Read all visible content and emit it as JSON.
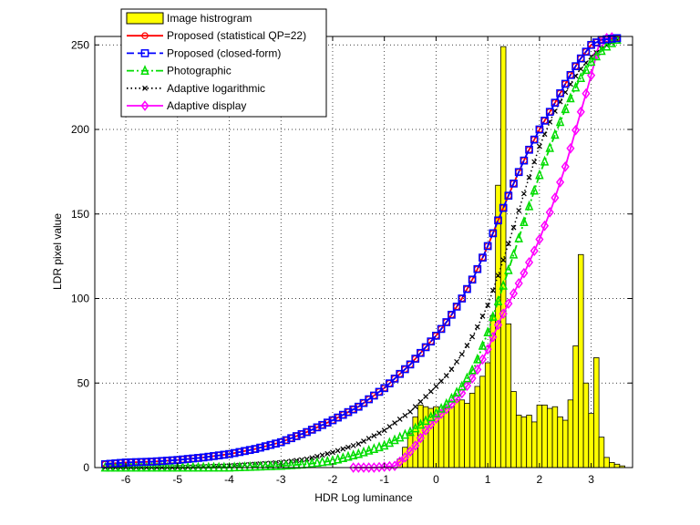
{
  "chart_data": {
    "type": "line",
    "title": "",
    "xlabel": "HDR Log luminance",
    "ylabel": "LDR pixel value",
    "xlim": [
      -6.6,
      3.8
    ],
    "ylim": [
      0,
      255
    ],
    "xticks": [
      -6,
      -5,
      -4,
      -3,
      -2,
      -1,
      0,
      1,
      2,
      3
    ],
    "yticks": [
      0,
      50,
      100,
      150,
      200,
      250
    ],
    "xtick_labels": [
      "-6",
      "-5",
      "-4",
      "-3",
      "-2",
      "-1",
      "0",
      "1",
      "2",
      "3"
    ],
    "ytick_labels": [
      "0",
      "50",
      "100",
      "150",
      "200",
      "250"
    ],
    "grid": "dotted",
    "legend_position": "top-left",
    "legend": [
      "Image histrogram",
      "Proposed (statistical QP=22)",
      "Proposed (closed-form)",
      "Photographic",
      "Adaptive logarithmic",
      "Adaptive display"
    ],
    "histogram": {
      "name": "Image histrogram",
      "color": "#ffff00",
      "bin_width": 0.1,
      "points": [
        [
          -0.7,
          5
        ],
        [
          -0.6,
          12
        ],
        [
          -0.5,
          20
        ],
        [
          -0.4,
          30
        ],
        [
          -0.3,
          37
        ],
        [
          -0.2,
          36
        ],
        [
          -0.1,
          35
        ],
        [
          0.0,
          36
        ],
        [
          0.1,
          34
        ],
        [
          0.2,
          35
        ],
        [
          0.3,
          36
        ],
        [
          0.4,
          40
        ],
        [
          0.5,
          40
        ],
        [
          0.6,
          38
        ],
        [
          0.7,
          44
        ],
        [
          0.8,
          48
        ],
        [
          0.9,
          54
        ],
        [
          1.0,
          62
        ],
        [
          1.1,
          90
        ],
        [
          1.2,
          167
        ],
        [
          1.3,
          249
        ],
        [
          1.4,
          85
        ],
        [
          1.5,
          45
        ],
        [
          1.6,
          31
        ],
        [
          1.7,
          30
        ],
        [
          1.8,
          31
        ],
        [
          1.9,
          27
        ],
        [
          2.0,
          37
        ],
        [
          2.1,
          37
        ],
        [
          2.2,
          35
        ],
        [
          2.3,
          36
        ],
        [
          2.4,
          30
        ],
        [
          2.5,
          28
        ],
        [
          2.6,
          40
        ],
        [
          2.7,
          72
        ],
        [
          2.8,
          126
        ],
        [
          2.9,
          50
        ],
        [
          3.0,
          32
        ],
        [
          3.1,
          65
        ],
        [
          3.2,
          18
        ],
        [
          3.3,
          6
        ],
        [
          3.4,
          3
        ],
        [
          3.5,
          2
        ],
        [
          3.6,
          1
        ]
      ]
    },
    "series": [
      {
        "name": "Proposed (statistical QP=22)",
        "color": "#ff0000",
        "marker": "circle",
        "linestyle": "solid",
        "points": [
          [
            -6.4,
            2
          ],
          [
            -6.0,
            3
          ],
          [
            -5.5,
            3.5
          ],
          [
            -5.0,
            4.5
          ],
          [
            -4.5,
            6
          ],
          [
            -4.0,
            8
          ],
          [
            -3.5,
            11
          ],
          [
            -3.0,
            15
          ],
          [
            -2.5,
            21
          ],
          [
            -2.0,
            28
          ],
          [
            -1.5,
            36
          ],
          [
            -1.0,
            47
          ],
          [
            -0.5,
            61
          ],
          [
            0.0,
            78
          ],
          [
            0.25,
            88
          ],
          [
            0.5,
            100
          ],
          [
            0.75,
            114
          ],
          [
            1.0,
            131
          ],
          [
            1.25,
            150
          ],
          [
            1.5,
            168
          ],
          [
            1.75,
            185
          ],
          [
            2.0,
            200
          ],
          [
            2.25,
            213
          ],
          [
            2.5,
            227
          ],
          [
            2.75,
            240
          ],
          [
            3.0,
            250
          ],
          [
            3.2,
            253
          ],
          [
            3.5,
            254
          ]
        ]
      },
      {
        "name": "Proposed (closed-form)",
        "color": "#0000ff",
        "marker": "square",
        "linestyle": "dashed",
        "points": [
          [
            -6.4,
            2
          ],
          [
            -6.0,
            3
          ],
          [
            -5.5,
            3.5
          ],
          [
            -5.0,
            4.5
          ],
          [
            -4.5,
            6
          ],
          [
            -4.0,
            8
          ],
          [
            -3.5,
            11
          ],
          [
            -3.0,
            15
          ],
          [
            -2.5,
            21
          ],
          [
            -2.0,
            28
          ],
          [
            -1.5,
            36
          ],
          [
            -1.0,
            47
          ],
          [
            -0.5,
            61
          ],
          [
            0.0,
            78
          ],
          [
            0.25,
            88
          ],
          [
            0.5,
            100
          ],
          [
            0.75,
            114
          ],
          [
            1.0,
            131
          ],
          [
            1.25,
            150
          ],
          [
            1.5,
            168
          ],
          [
            1.75,
            185
          ],
          [
            2.0,
            200
          ],
          [
            2.25,
            213
          ],
          [
            2.5,
            227
          ],
          [
            2.75,
            240
          ],
          [
            3.0,
            250
          ],
          [
            3.2,
            253
          ],
          [
            3.5,
            254
          ]
        ]
      },
      {
        "name": "Photographic",
        "color": "#00dd00",
        "marker": "triangle",
        "linestyle": "dashdot",
        "points": [
          [
            -6.4,
            0
          ],
          [
            -4.0,
            0
          ],
          [
            -3.0,
            1
          ],
          [
            -2.5,
            2
          ],
          [
            -2.0,
            4
          ],
          [
            -1.5,
            8
          ],
          [
            -1.0,
            13
          ],
          [
            -0.5,
            21
          ],
          [
            0.0,
            32
          ],
          [
            0.25,
            39
          ],
          [
            0.5,
            48
          ],
          [
            0.75,
            60
          ],
          [
            1.0,
            80
          ],
          [
            1.25,
            103
          ],
          [
            1.5,
            126
          ],
          [
            1.75,
            150
          ],
          [
            2.0,
            173
          ],
          [
            2.25,
            193
          ],
          [
            2.5,
            212
          ],
          [
            2.75,
            228
          ],
          [
            3.0,
            240
          ],
          [
            3.25,
            248
          ],
          [
            3.5,
            253
          ]
        ]
      },
      {
        "name": "Adaptive logarithmic",
        "color": "#000000",
        "marker": "x",
        "linestyle": "dotted",
        "points": [
          [
            -6.4,
            0
          ],
          [
            -5.0,
            0
          ],
          [
            -4.0,
            1
          ],
          [
            -3.0,
            3
          ],
          [
            -2.5,
            5
          ],
          [
            -2.0,
            9
          ],
          [
            -1.5,
            14
          ],
          [
            -1.0,
            22
          ],
          [
            -0.5,
            33
          ],
          [
            0.0,
            48
          ],
          [
            0.25,
            56
          ],
          [
            0.5,
            67
          ],
          [
            0.75,
            80
          ],
          [
            1.0,
            96
          ],
          [
            1.25,
            118
          ],
          [
            1.5,
            142
          ],
          [
            1.75,
            167
          ],
          [
            2.0,
            190
          ],
          [
            2.25,
            208
          ],
          [
            2.5,
            222
          ],
          [
            2.75,
            234
          ],
          [
            3.0,
            243
          ],
          [
            3.25,
            249
          ],
          [
            3.5,
            253
          ]
        ]
      },
      {
        "name": "Adaptive display",
        "color": "#ff00ff",
        "marker": "diamond",
        "linestyle": "solid",
        "points": [
          [
            -1.6,
            0
          ],
          [
            -1.2,
            0
          ],
          [
            -0.8,
            1
          ],
          [
            -0.6,
            6
          ],
          [
            -0.4,
            13
          ],
          [
            -0.2,
            22
          ],
          [
            0.0,
            29
          ],
          [
            0.25,
            36
          ],
          [
            0.5,
            44
          ],
          [
            0.75,
            55
          ],
          [
            1.0,
            70
          ],
          [
            1.25,
            88
          ],
          [
            1.5,
            103
          ],
          [
            1.75,
            118
          ],
          [
            2.0,
            135
          ],
          [
            2.25,
            155
          ],
          [
            2.5,
            178
          ],
          [
            2.75,
            205
          ],
          [
            3.0,
            232
          ],
          [
            3.15,
            250
          ],
          [
            3.3,
            254
          ],
          [
            3.5,
            255
          ]
        ]
      }
    ]
  }
}
